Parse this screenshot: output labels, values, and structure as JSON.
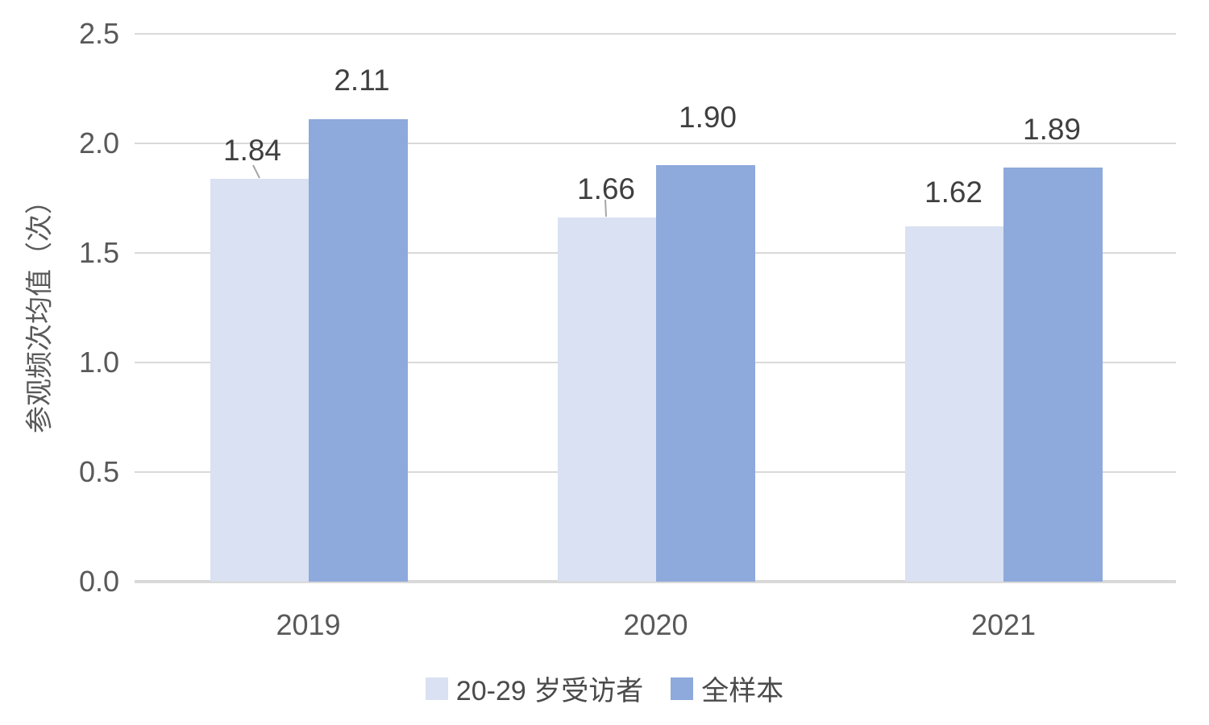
{
  "chart": {
    "y_axis_title": "参观频次均值（次）",
    "y_ticks": [
      "0.0",
      "0.5",
      "1.0",
      "1.5",
      "2.0",
      "2.5"
    ]
  },
  "legend": {
    "items": [
      {
        "label": "20-29 岁受访者",
        "color": "#D9E1F2"
      },
      {
        "label": "全样本",
        "color": "#8EA9DB"
      }
    ]
  },
  "chart_data": {
    "type": "bar",
    "categories": [
      "2019",
      "2020",
      "2021"
    ],
    "series": [
      {
        "name": "20-29 岁受访者",
        "color": "#D9E1F2",
        "values": [
          1.84,
          1.66,
          1.62
        ],
        "labels": [
          "1.84",
          "1.66",
          "1.62"
        ]
      },
      {
        "name": "全样本",
        "color": "#8EA9DB",
        "values": [
          2.11,
          1.9,
          1.89
        ],
        "labels": [
          "2.11",
          "1.90",
          "1.89"
        ]
      }
    ],
    "title": "",
    "xlabel": "",
    "ylabel": "参观频次均值（次）",
    "ylim": [
      0,
      2.5
    ],
    "y_tick_step": 0.5,
    "grid": true,
    "data_labels": true,
    "legend_position": "bottom"
  },
  "colors": {
    "gridline": "#D9D9D9",
    "axis_text": "#595959",
    "data_label_text": "#3F3F3F",
    "leader_line": "#A6A6A6",
    "background": "#FFFFFF"
  }
}
